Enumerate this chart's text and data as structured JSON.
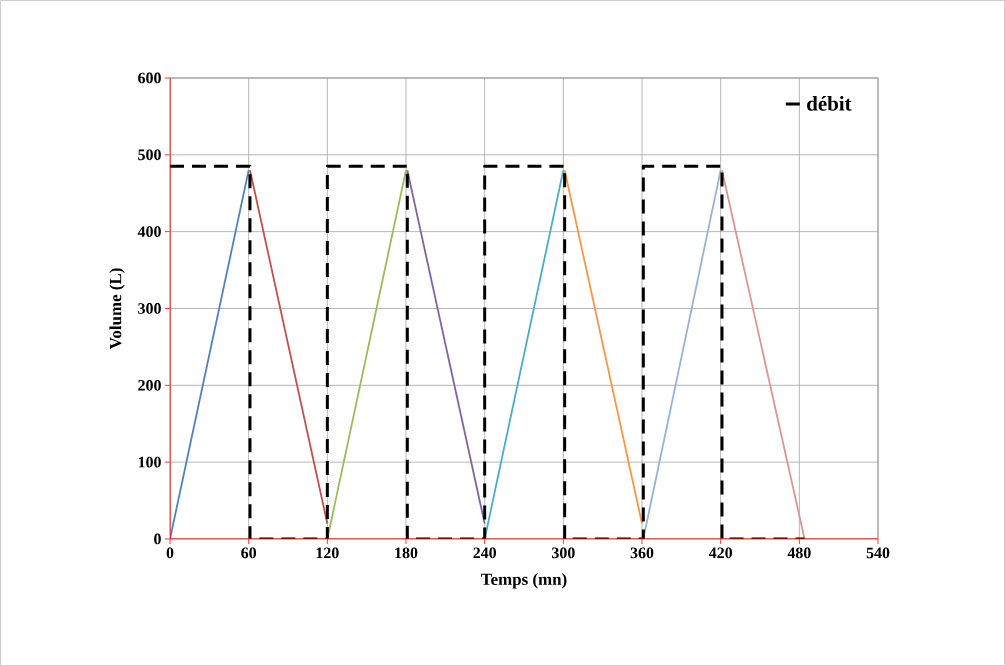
{
  "chart_data": {
    "type": "line",
    "xlabel": "Temps (mn)",
    "ylabel": "Volume (L)",
    "xlim": [
      0,
      540
    ],
    "xticks": [
      0,
      60,
      120,
      180,
      240,
      300,
      360,
      420,
      480,
      540
    ],
    "ylim": [
      0,
      600
    ],
    "yticks": [
      0,
      100,
      200,
      300,
      400,
      500,
      600
    ],
    "grid": true,
    "legend": "top right",
    "marker": "none",
    "line_style": "solid",
    "series": [
      {
        "color": "#4f81bd",
        "x": [
          0,
          60
        ],
        "values": [
          0,
          480
        ]
      },
      {
        "color": "#c0504d",
        "x": [
          61,
          120
        ],
        "values": [
          480,
          20
        ]
      },
      {
        "color": "#9bbb59",
        "x": [
          120,
          180
        ],
        "values": [
          0,
          480
        ]
      },
      {
        "color": "#8064a2",
        "x": [
          181,
          240
        ],
        "values": [
          480,
          20
        ]
      },
      {
        "color": "#4bacc6",
        "x": [
          240,
          300
        ],
        "values": [
          0,
          480
        ]
      },
      {
        "color": "#f79646",
        "x": [
          301,
          360
        ],
        "values": [
          480,
          20
        ]
      },
      {
        "color": "#95b3d7",
        "x": [
          361,
          420
        ],
        "values": [
          0,
          480
        ]
      },
      {
        "color": "#d99694",
        "x": [
          421,
          484
        ],
        "values": [
          480,
          0
        ]
      },
      {
        "name": "débit",
        "color": "#000000",
        "line_style": "dashed",
        "x": [
          0,
          61,
          61,
          120,
          120,
          181,
          181,
          240,
          240,
          301,
          301,
          361,
          361,
          421,
          421,
          484
        ],
        "values": [
          485,
          485,
          0,
          0,
          485,
          485,
          0,
          0,
          485,
          485,
          0,
          0,
          485,
          485,
          0,
          0
        ]
      }
    ]
  }
}
